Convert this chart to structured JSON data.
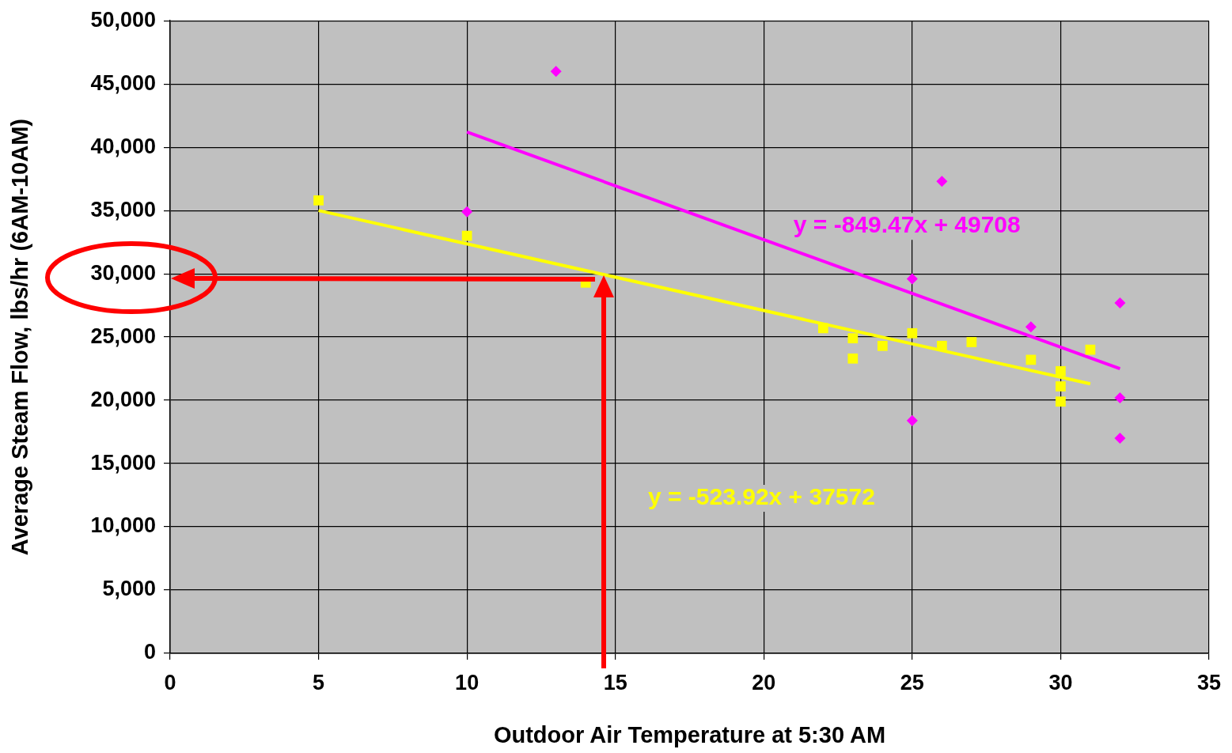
{
  "chart_data": {
    "type": "scatter",
    "xlabel": "Outdoor Air Temperature at 5:30 AM",
    "ylabel": "Average Steam Flow, lbs/hr (6AM-10AM)",
    "xlim": [
      0,
      35
    ],
    "xticks": [
      0,
      5,
      10,
      15,
      20,
      25,
      30,
      35
    ],
    "ylim": [
      0,
      50000
    ],
    "yticks": [
      {
        "value": 0,
        "label": "0"
      },
      {
        "value": 5000,
        "label": "5,000"
      },
      {
        "value": 10000,
        "label": "10,000"
      },
      {
        "value": 15000,
        "label": "15,000"
      },
      {
        "value": 20000,
        "label": "20,000"
      },
      {
        "value": 25000,
        "label": "25,000"
      },
      {
        "value": 30000,
        "label": "30,000"
      },
      {
        "value": 35000,
        "label": "35,000"
      },
      {
        "value": 40000,
        "label": "40,000"
      },
      {
        "value": 45000,
        "label": "45,000"
      },
      {
        "value": 50000,
        "label": "50,000"
      }
    ],
    "grid": true,
    "legend": false,
    "series": [
      {
        "marker": "diamond",
        "color": "#ff00ff",
        "x": [
          13,
          10,
          26,
          25,
          29,
          32,
          32,
          25,
          32
        ],
        "values": [
          46000,
          34900,
          37300,
          29600,
          25800,
          27700,
          20200,
          18400,
          17000
        ]
      },
      {
        "marker": "square",
        "color": "#ffff00",
        "x": [
          5,
          10,
          14,
          22,
          23,
          23,
          24,
          25,
          26,
          27,
          29,
          30,
          30,
          30,
          31
        ],
        "values": [
          35800,
          33000,
          29300,
          25700,
          24900,
          23300,
          24300,
          25300,
          24300,
          24600,
          23200,
          22300,
          21100,
          19900,
          24000
        ]
      },
      {
        "type": "line",
        "marker": "none",
        "name": "y = -849.47x + 49708",
        "color": "#ff00ff",
        "x": [
          10,
          32
        ],
        "values": [
          41200,
          22500
        ]
      },
      {
        "type": "line",
        "marker": "none",
        "name": "y = -523.92x + 37572",
        "color": "#ffff00",
        "x": [
          5,
          31
        ],
        "values": [
          35000,
          21300
        ]
      }
    ]
  }
}
